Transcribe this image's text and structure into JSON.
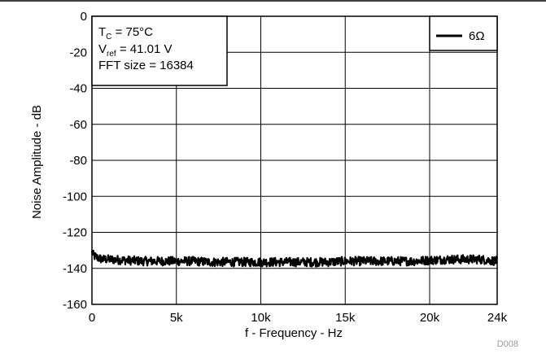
{
  "chart_data": {
    "type": "line",
    "code": "D008",
    "xlabel": "f - Frequency - Hz",
    "ylabel": "Noise Amplitude - dB",
    "xlim": [
      0,
      24000
    ],
    "ylim": [
      -160,
      0
    ],
    "x_ticks": [
      {
        "value": 0,
        "label": "0"
      },
      {
        "value": 5000,
        "label": "5k"
      },
      {
        "value": 10000,
        "label": "10k"
      },
      {
        "value": 15000,
        "label": "15k"
      },
      {
        "value": 20000,
        "label": "20k"
      },
      {
        "value": 24000,
        "label": "24k"
      }
    ],
    "y_ticks": [
      {
        "value": 0,
        "label": "0"
      },
      {
        "value": -20,
        "label": "-20"
      },
      {
        "value": -40,
        "label": "-40"
      },
      {
        "value": -60,
        "label": "-60"
      },
      {
        "value": -80,
        "label": "-80"
      },
      {
        "value": -100,
        "label": "-100"
      },
      {
        "value": -120,
        "label": "-120"
      },
      {
        "value": -140,
        "label": "-140"
      },
      {
        "value": -160,
        "label": "-160"
      }
    ],
    "grid": true,
    "legend_position": "top-right",
    "annotation": {
      "line1_main": "T",
      "line1_sub": "C",
      "line1_rest": " = 75°C",
      "line2_main": "V",
      "line2_sub": "ref",
      "line2_rest": " = 41.01 V",
      "line3": "FFT size = 16384"
    },
    "series": [
      {
        "name": "6Ω",
        "color": "#000000",
        "x": [
          0,
          100,
          300,
          600,
          1000,
          2000,
          3000,
          4000,
          5000,
          6000,
          7000,
          8000,
          9000,
          10000,
          11000,
          12000,
          13000,
          14000,
          15000,
          16000,
          17000,
          18000,
          19000,
          20000,
          21000,
          22000,
          23000,
          24000
        ],
        "y": [
          -131,
          -133,
          -134,
          -135,
          -135,
          -135.5,
          -136,
          -136,
          -136,
          -136,
          -136.5,
          -136.5,
          -136.5,
          -136.5,
          -136.5,
          -136.5,
          -136.5,
          -136.5,
          -136,
          -136,
          -136,
          -136,
          -136,
          -135.5,
          -135,
          -135,
          -135,
          -136
        ],
        "band_halfwidth": 2.5
      }
    ]
  }
}
